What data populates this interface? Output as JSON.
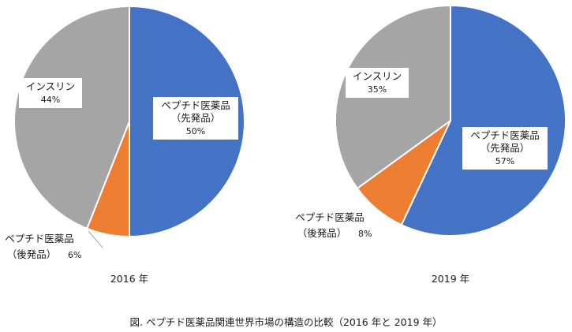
{
  "chart_data": [
    {
      "type": "pie",
      "title": "",
      "caption": "2016 年",
      "start": "top",
      "direction": "clockwise",
      "slices": [
        {
          "label": [
            "ペプチド医薬品",
            "（先発品）"
          ],
          "value": 50,
          "value_label": "50%",
          "color": "#4472c4"
        },
        {
          "label": [
            "ペプチド医薬品",
            "（後発品）"
          ],
          "value": 6,
          "value_label": "6%",
          "color": "#ed7d31"
        },
        {
          "label": [
            "インスリン"
          ],
          "value": 44,
          "value_label": "44%",
          "color": "#a5a5a5"
        }
      ]
    },
    {
      "type": "pie",
      "title": "",
      "caption": "2019 年",
      "start": "top",
      "direction": "clockwise",
      "slices": [
        {
          "label": [
            "ペプチド医薬品",
            "（先発品）"
          ],
          "value": 57,
          "value_label": "57%",
          "color": "#4472c4"
        },
        {
          "label": [
            "ペプチド医薬品",
            "（後発品）"
          ],
          "value": 8,
          "value_label": "8%",
          "color": "#ed7d31"
        },
        {
          "label": [
            "インスリン"
          ],
          "value": 35,
          "value_label": "35%",
          "color": "#a5a5a5"
        }
      ]
    }
  ],
  "figure_caption": "図. ペプチド医薬品関連世界市場の構造の比較（2016 年と 2019 年）"
}
